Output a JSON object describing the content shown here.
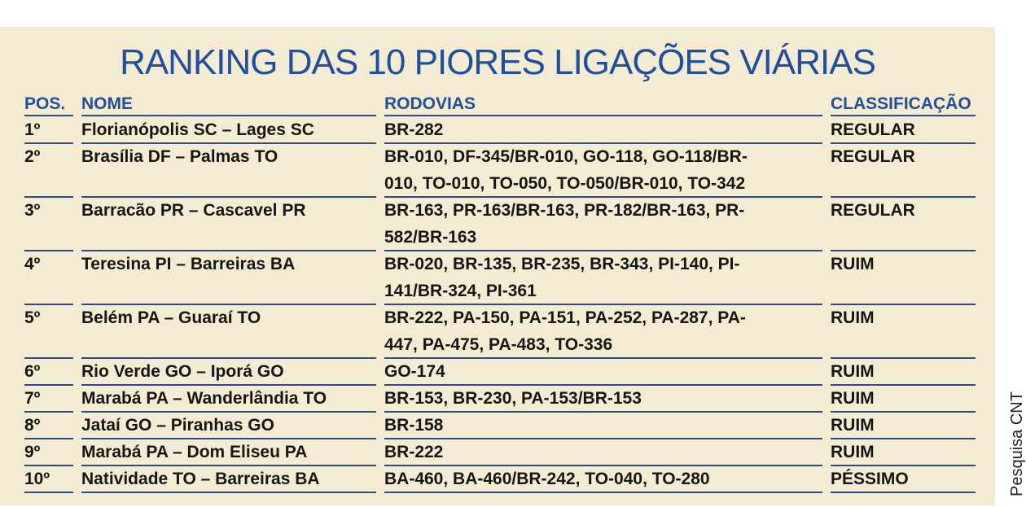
{
  "title": "RANKING DAS 10 PIORES LIGAÇÕES VIÁRIAS",
  "source": "Pesquisa CNT",
  "table": {
    "headers": [
      "POS.",
      "NOME",
      "RODOVIAS",
      "CLASSIFICAÇÃO"
    ],
    "rows": [
      {
        "pos": "1º",
        "nome": "Florianópolis SC – Lages SC",
        "rodovias": [
          "BR-282"
        ],
        "classificacao": "REGULAR"
      },
      {
        "pos": "2º",
        "nome": "Brasília DF – Palmas TO",
        "rodovias": [
          "BR-010, DF-345/BR-010, GO-118, GO-118/BR-",
          "010, TO-010, TO-050, TO-050/BR-010, TO-342"
        ],
        "classificacao": "REGULAR"
      },
      {
        "pos": "3º",
        "nome": "Barracão PR – Cascavel PR",
        "rodovias": [
          "BR-163, PR-163/BR-163, PR-182/BR-163, PR-",
          "582/BR-163"
        ],
        "classificacao": "REGULAR"
      },
      {
        "pos": "4º",
        "nome": "Teresina PI – Barreiras BA",
        "rodovias": [
          "BR-020, BR-135, BR-235, BR-343, PI-140, PI-",
          "141/BR-324, PI-361"
        ],
        "classificacao": "RUIM"
      },
      {
        "pos": "5º",
        "nome": "Belém PA – Guaraí TO",
        "rodovias": [
          "BR-222, PA-150, PA-151, PA-252, PA-287, PA-",
          "447, PA-475, PA-483, TO-336"
        ],
        "classificacao": "RUIM"
      },
      {
        "pos": "6º",
        "nome": "Rio Verde GO – Iporá GO",
        "rodovias": [
          "GO-174"
        ],
        "classificacao": "RUIM"
      },
      {
        "pos": "7º",
        "nome": "Marabá PA – Wanderlândia TO",
        "rodovias": [
          "BR-153, BR-230, PA-153/BR-153"
        ],
        "classificacao": "RUIM"
      },
      {
        "pos": "8º",
        "nome": "Jataí GO – Piranhas GO",
        "rodovias": [
          "BR-158"
        ],
        "classificacao": "RUIM"
      },
      {
        "pos": "9º",
        "nome": "Marabá PA – Dom Eliseu PA",
        "rodovias": [
          "BR-222"
        ],
        "classificacao": "RUIM"
      },
      {
        "pos": "10º",
        "nome": "Natividade TO – Barreiras BA",
        "rodovias": [
          "BA-460, BA-460/BR-242, TO-040, TO-280"
        ],
        "classificacao": "PÉSSIMO"
      }
    ]
  }
}
